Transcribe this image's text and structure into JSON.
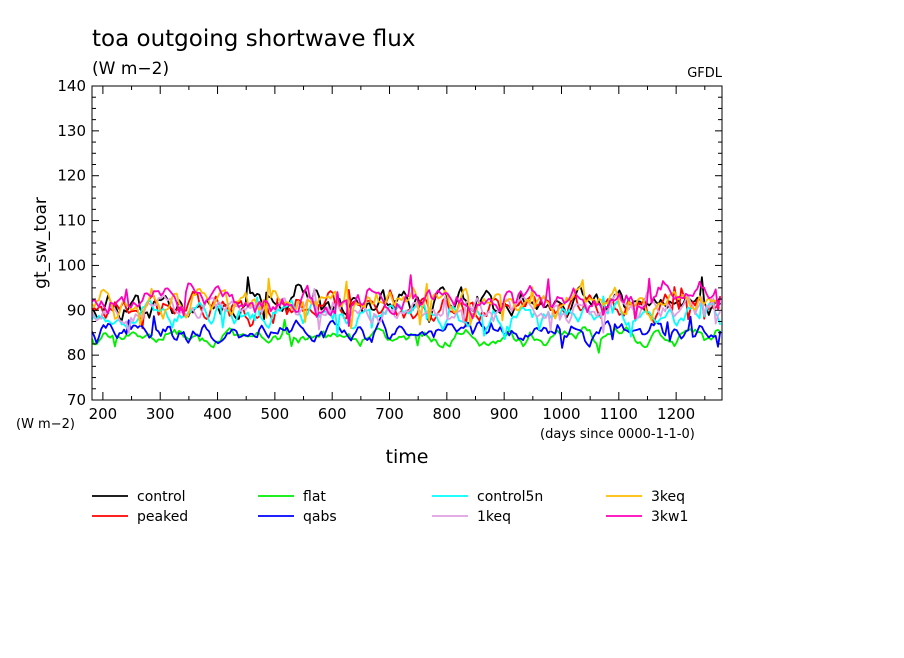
{
  "chart_data": {
    "type": "line",
    "title": "toa outgoing shortwave flux",
    "units": "(W m−2)",
    "credit": "GFDL",
    "ylabel": "gt_sw_toar",
    "y_units_label": "(W m−2)",
    "xlabel": "time",
    "x_units_label": "(days since 0000-1-1-0)",
    "xlim": [
      181,
      1280
    ],
    "ylim": [
      70,
      140
    ],
    "x_ticks": [
      200,
      300,
      400,
      500,
      600,
      700,
      800,
      900,
      1000,
      1100,
      1200
    ],
    "y_ticks": [
      70,
      80,
      90,
      100,
      110,
      120,
      130,
      140
    ],
    "x_step_days": 4,
    "series": [
      {
        "name": "control",
        "color": "#000000",
        "mean": 91.5,
        "amp": 2.6,
        "min": 86.5,
        "max": 99.5,
        "seed": 11
      },
      {
        "name": "peaked",
        "color": "#ff0000",
        "mean": 91.0,
        "amp": 2.6,
        "min": 86.0,
        "max": 98.0,
        "seed": 23
      },
      {
        "name": "flat",
        "color": "#00ee00",
        "mean": 84.0,
        "amp": 1.5,
        "min": 79.5,
        "max": 88.0,
        "seed": 37
      },
      {
        "name": "qabs",
        "color": "#0000ff",
        "mean": 85.3,
        "amp": 2.0,
        "min": 79.5,
        "max": 90.0,
        "seed": 41
      },
      {
        "name": "control5n",
        "color": "#00ffff",
        "mean": 89.0,
        "amp": 2.2,
        "min": 83.5,
        "max": 97.5,
        "seed": 53
      },
      {
        "name": "1keq",
        "color": "#e0a0e0",
        "mean": 90.5,
        "amp": 2.3,
        "min": 85.0,
        "max": 98.0,
        "seed": 67
      },
      {
        "name": "3keq",
        "color": "#ffbb00",
        "mean": 91.8,
        "amp": 2.5,
        "min": 86.0,
        "max": 100.0,
        "seed": 71
      },
      {
        "name": "3kw1",
        "color": "#ff00bb",
        "mean": 92.2,
        "amp": 2.6,
        "min": 86.5,
        "max": 100.0,
        "seed": 83
      }
    ]
  }
}
